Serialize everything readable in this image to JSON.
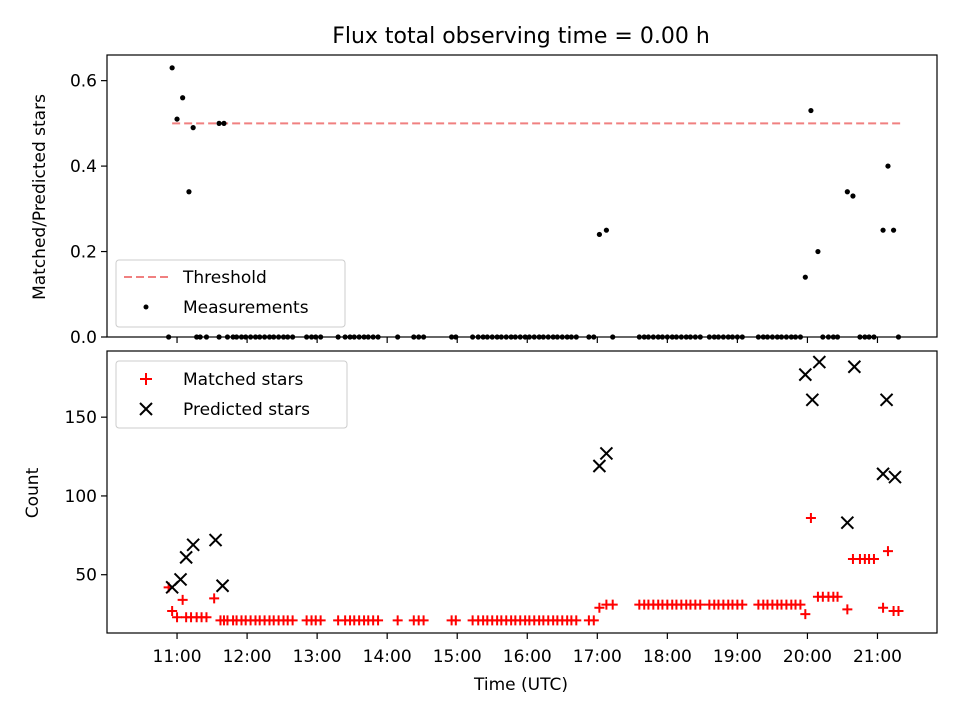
{
  "figure": {
    "title": "Flux total observing time = 0.00 h"
  },
  "chart_data": [
    {
      "type": "scatter",
      "title": "Flux total observing time = 0.00 h",
      "xlabel": "",
      "ylabel": "Matched/Predicted stars",
      "x_unit": "hours UTC",
      "xlim": [
        10.0,
        21.85
      ],
      "ylim": [
        0,
        0.66
      ],
      "yticks": [
        0.0,
        0.2,
        0.4,
        0.6
      ],
      "ytick_labels": [
        "0.0",
        "0.2",
        "0.4",
        "0.6"
      ],
      "legend_position": "lower left",
      "series": [
        {
          "name": "Threshold",
          "style": "dashed-line",
          "color": "#f08080",
          "x": [
            10.93,
            21.33
          ],
          "y": [
            0.5,
            0.5
          ]
        },
        {
          "name": "Measurements",
          "style": "dot",
          "color": "#000000",
          "x": [
            10.93,
            11.0,
            11.08,
            11.17,
            11.23,
            11.6,
            11.67,
            17.03,
            17.13,
            19.97,
            20.05,
            20.15,
            20.57,
            20.65,
            21.08,
            21.15,
            21.23,
            10.88,
            11.28,
            11.33,
            11.42,
            11.6,
            11.72,
            11.8,
            11.85,
            11.92,
            11.98,
            12.05,
            12.12,
            12.18,
            12.25,
            12.32,
            12.38,
            12.45,
            12.52,
            12.58,
            12.65,
            12.85,
            12.92,
            12.98,
            13.05,
            13.3,
            13.4,
            13.47,
            13.53,
            13.6,
            13.67,
            13.73,
            13.8,
            13.87,
            14.15,
            14.38,
            14.45,
            14.52,
            14.92,
            14.98,
            15.22,
            15.3,
            15.37,
            15.43,
            15.5,
            15.57,
            15.63,
            15.7,
            15.77,
            15.83,
            15.9,
            15.97,
            16.03,
            16.1,
            16.17,
            16.23,
            16.3,
            16.37,
            16.43,
            16.5,
            16.57,
            16.63,
            16.7,
            16.88,
            16.95,
            17.22,
            17.6,
            17.67,
            17.73,
            17.8,
            17.87,
            17.93,
            18.0,
            18.07,
            18.13,
            18.2,
            18.27,
            18.33,
            18.4,
            18.47,
            18.6,
            18.67,
            18.73,
            18.8,
            18.87,
            18.93,
            19.0,
            19.07,
            19.3,
            19.37,
            19.43,
            19.5,
            19.57,
            19.63,
            19.7,
            19.77,
            19.83,
            19.9,
            20.22,
            20.3,
            20.37,
            20.43,
            20.75,
            20.82,
            20.88,
            20.95,
            21.3
          ],
          "y": [
            0.63,
            0.51,
            0.56,
            0.34,
            0.49,
            0.5,
            0.5,
            0.24,
            0.25,
            0.14,
            0.53,
            0.2,
            0.34,
            0.33,
            0.25,
            0.4,
            0.25,
            0,
            0,
            0,
            0,
            0,
            0,
            0,
            0,
            0,
            0,
            0,
            0,
            0,
            0,
            0,
            0,
            0,
            0,
            0,
            0,
            0,
            0,
            0,
            0,
            0,
            0,
            0,
            0,
            0,
            0,
            0,
            0,
            0,
            0,
            0,
            0,
            0,
            0,
            0,
            0,
            0,
            0,
            0,
            0,
            0,
            0,
            0,
            0,
            0,
            0,
            0,
            0,
            0,
            0,
            0,
            0,
            0,
            0,
            0,
            0,
            0,
            0,
            0,
            0,
            0,
            0,
            0,
            0,
            0,
            0,
            0,
            0,
            0,
            0,
            0,
            0,
            0,
            0,
            0,
            0,
            0,
            0,
            0,
            0,
            0,
            0,
            0,
            0,
            0,
            0,
            0,
            0,
            0,
            0,
            0,
            0,
            0,
            0,
            0,
            0,
            0,
            0,
            0,
            0,
            0,
            0
          ]
        }
      ]
    },
    {
      "type": "scatter",
      "title": "",
      "xlabel": "Time (UTC)",
      "ylabel": "Count",
      "x_unit": "hours UTC",
      "xlim": [
        10.0,
        21.85
      ],
      "ylim": [
        13,
        192
      ],
      "yticks": [
        50,
        100,
        150
      ],
      "ytick_labels": [
        "50",
        "100",
        "150"
      ],
      "xticks": [
        11,
        12,
        13,
        14,
        15,
        16,
        17,
        18,
        19,
        20,
        21
      ],
      "xtick_labels": [
        "11:00",
        "12:00",
        "13:00",
        "14:00",
        "15:00",
        "16:00",
        "17:00",
        "18:00",
        "19:00",
        "20:00",
        "21:00"
      ],
      "legend_position": "upper left",
      "series": [
        {
          "name": "Matched stars",
          "marker": "plus",
          "color": "#ff0000",
          "x": [
            10.88,
            10.93,
            11.0,
            11.08,
            11.13,
            11.2,
            11.28,
            11.35,
            11.42,
            11.53,
            11.62,
            11.67,
            11.72,
            11.8,
            11.85,
            11.92,
            11.98,
            12.05,
            12.12,
            12.18,
            12.25,
            12.32,
            12.38,
            12.45,
            12.52,
            12.58,
            12.65,
            12.85,
            12.92,
            12.98,
            13.05,
            13.3,
            13.4,
            13.47,
            13.53,
            13.6,
            13.67,
            13.73,
            13.8,
            13.87,
            14.15,
            14.38,
            14.45,
            14.52,
            14.92,
            14.98,
            15.22,
            15.3,
            15.37,
            15.43,
            15.5,
            15.57,
            15.63,
            15.7,
            15.77,
            15.83,
            15.9,
            15.97,
            16.03,
            16.1,
            16.17,
            16.23,
            16.3,
            16.37,
            16.43,
            16.5,
            16.57,
            16.63,
            16.7,
            16.88,
            16.95,
            17.03,
            17.13,
            17.22,
            17.6,
            17.67,
            17.73,
            17.8,
            17.87,
            17.93,
            18.0,
            18.07,
            18.13,
            18.2,
            18.27,
            18.33,
            18.4,
            18.47,
            18.6,
            18.67,
            18.73,
            18.8,
            18.87,
            18.93,
            19.0,
            19.07,
            19.3,
            19.37,
            19.43,
            19.5,
            19.57,
            19.63,
            19.7,
            19.77,
            19.83,
            19.9,
            19.97,
            20.05,
            20.15,
            20.22,
            20.3,
            20.37,
            20.43,
            20.57,
            20.65,
            20.75,
            20.82,
            20.88,
            20.95,
            21.08,
            21.15,
            21.23,
            21.3
          ],
          "y": [
            42,
            27,
            23,
            34,
            23,
            23,
            23,
            23,
            23,
            35,
            21,
            21,
            21,
            21,
            21,
            21,
            21,
            21,
            21,
            21,
            21,
            21,
            21,
            21,
            21,
            21,
            21,
            21,
            21,
            21,
            21,
            21,
            21,
            21,
            21,
            21,
            21,
            21,
            21,
            21,
            21,
            21,
            21,
            21,
            21,
            21,
            21,
            21,
            21,
            21,
            21,
            21,
            21,
            21,
            21,
            21,
            21,
            21,
            21,
            21,
            21,
            21,
            21,
            21,
            21,
            21,
            21,
            21,
            21,
            21,
            21,
            29,
            31,
            31,
            31,
            31,
            31,
            31,
            31,
            31,
            31,
            31,
            31,
            31,
            31,
            31,
            31,
            31,
            31,
            31,
            31,
            31,
            31,
            31,
            31,
            31,
            31,
            31,
            31,
            31,
            31,
            31,
            31,
            31,
            31,
            31,
            25,
            86,
            36,
            36,
            36,
            36,
            36,
            28,
            60,
            60,
            60,
            60,
            60,
            29,
            65,
            27,
            27
          ]
        },
        {
          "name": "Predicted stars",
          "marker": "x",
          "color": "#000000",
          "x": [
            10.93,
            11.05,
            11.13,
            11.23,
            11.55,
            11.65,
            17.03,
            17.13,
            19.97,
            20.07,
            20.17,
            20.57,
            20.67,
            21.08,
            21.13,
            21.25
          ],
          "y": [
            42,
            47,
            61,
            69,
            72,
            43,
            119,
            127,
            177,
            161,
            185,
            83,
            182,
            114,
            161,
            112
          ]
        }
      ]
    }
  ]
}
